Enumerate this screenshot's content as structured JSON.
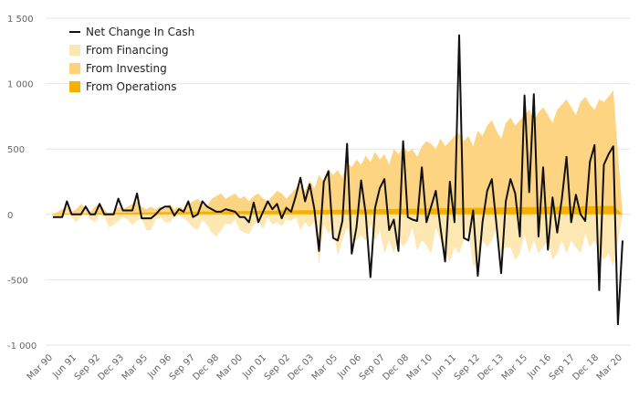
{
  "chart_data": {
    "type": "area",
    "title": "",
    "xlabel": "",
    "ylabel": "",
    "ylim": [
      -1000,
      1500
    ],
    "yticks": [
      1500,
      1000,
      500,
      0,
      -500,
      -1000
    ],
    "ytick_labels": [
      "1 500",
      "1 000",
      "500",
      "0",
      "-500",
      "-1 000"
    ],
    "xtick_labels": [
      "Mar 90",
      "Jun 91",
      "Sep 92",
      "Dec 93",
      "Mar 95",
      "Jun 96",
      "Sep 97",
      "Dec 98",
      "Mar 00",
      "Jun 01",
      "Sep 02",
      "Dec 03",
      "Mar 05",
      "Jun 06",
      "Sep 07",
      "Dec 08",
      "Mar 10",
      "Jun 11",
      "Sep 12",
      "Dec 13",
      "Mar 15",
      "Jun 16",
      "Sep 17",
      "Dec 18",
      "Mar 20"
    ],
    "grid": true,
    "legend_position": "top-left",
    "x_start": "Mar 90",
    "x_step": "quarter",
    "series": [
      {
        "name": "Net Change In Cash",
        "kind": "line",
        "color": "#111111",
        "values": [
          -20,
          -20,
          -20,
          100,
          0,
          0,
          0,
          60,
          0,
          0,
          80,
          0,
          0,
          0,
          120,
          30,
          30,
          30,
          160,
          -30,
          -30,
          -30,
          0,
          40,
          60,
          60,
          -10,
          40,
          20,
          100,
          -20,
          0,
          100,
          60,
          40,
          20,
          20,
          40,
          30,
          20,
          -20,
          -20,
          -60,
          90,
          -60,
          20,
          100,
          40,
          80,
          -30,
          50,
          20,
          140,
          280,
          100,
          230,
          40,
          -280,
          250,
          330,
          -180,
          -200,
          -50,
          540,
          -300,
          -100,
          260,
          0,
          -480,
          50,
          200,
          270,
          -120,
          -40,
          -280,
          560,
          -20,
          -40,
          -50,
          360,
          -60,
          60,
          180,
          -100,
          -360,
          250,
          -60,
          1370,
          -180,
          -200,
          30,
          -470,
          -60,
          180,
          270,
          -80,
          -450,
          100,
          270,
          160,
          -170,
          910,
          170,
          920,
          -170,
          360,
          -270,
          130,
          -140,
          120,
          440,
          -60,
          150,
          0,
          -50,
          400,
          530,
          -580,
          380,
          460,
          520,
          -840,
          -200
        ]
      },
      {
        "name": "From Financing",
        "kind": "area",
        "color": "#fde7b0",
        "values": [
          -20,
          -20,
          -10,
          40,
          -20,
          -60,
          -20,
          40,
          -40,
          -60,
          0,
          -20,
          -100,
          -80,
          -50,
          -20,
          -40,
          -80,
          -50,
          -30,
          -120,
          -120,
          -40,
          -20,
          -60,
          -60,
          -20,
          -10,
          -30,
          -60,
          -100,
          -120,
          -40,
          -80,
          -140,
          -170,
          -120,
          -70,
          -80,
          -40,
          -120,
          -140,
          -150,
          -80,
          -50,
          -110,
          -20,
          -80,
          -60,
          -90,
          -40,
          -50,
          -20,
          -120,
          -60,
          -100,
          -60,
          -380,
          -80,
          -150,
          -100,
          -320,
          -200,
          -100,
          -200,
          -200,
          -160,
          -200,
          -80,
          -200,
          -120,
          -300,
          -200,
          -300,
          -180,
          -250,
          -200,
          -100,
          -280,
          -200,
          -240,
          -300,
          -100,
          -200,
          -300,
          -360,
          -250,
          -300,
          -200,
          -120,
          -400,
          -350,
          -200,
          -250,
          -200,
          -100,
          -300,
          -250,
          -250,
          -350,
          -300,
          -150,
          -300,
          -200,
          -300,
          -250,
          -200,
          -350,
          -300,
          -200,
          -300,
          -200,
          -250,
          -300,
          -150,
          -250,
          -200,
          -300,
          -350,
          -300,
          -400
        ]
      },
      {
        "name": "From Investing",
        "kind": "area",
        "color": "#fdd27a",
        "values": [
          0,
          20,
          40,
          60,
          20,
          40,
          80,
          40,
          20,
          60,
          80,
          40,
          0,
          20,
          60,
          40,
          60,
          80,
          100,
          60,
          40,
          60,
          40,
          60,
          40,
          80,
          40,
          60,
          40,
          80,
          100,
          120,
          80,
          60,
          120,
          140,
          160,
          120,
          140,
          160,
          120,
          140,
          100,
          140,
          160,
          120,
          100,
          140,
          180,
          160,
          120,
          160,
          200,
          220,
          180,
          260,
          200,
          300,
          250,
          350,
          300,
          340,
          280,
          400,
          360,
          420,
          380,
          450,
          400,
          480,
          420,
          460,
          380,
          500,
          460,
          520,
          480,
          500,
          440,
          520,
          560,
          540,
          500,
          580,
          520,
          560,
          600,
          620,
          560,
          600,
          520,
          640,
          600,
          680,
          720,
          640,
          580,
          700,
          740,
          680,
          720,
          760,
          800,
          720,
          780,
          820,
          760,
          700,
          800,
          840,
          880,
          820,
          760,
          860,
          900,
          840,
          800,
          880,
          860,
          900,
          950
        ]
      },
      {
        "name": "From Operations",
        "kind": "area",
        "color": "#f5b000",
        "values": [
          5,
          5,
          6,
          6,
          7,
          7,
          8,
          8,
          9,
          9,
          10,
          10,
          11,
          11,
          12,
          12,
          13,
          13,
          14,
          14,
          15,
          15,
          16,
          16,
          17,
          17,
          18,
          18,
          19,
          19,
          20,
          20,
          21,
          21,
          22,
          22,
          23,
          23,
          24,
          24,
          25,
          25,
          26,
          26,
          27,
          27,
          28,
          28,
          29,
          29,
          30,
          30,
          31,
          31,
          32,
          32,
          33,
          33,
          34,
          34,
          35,
          35,
          36,
          36,
          37,
          37,
          38,
          38,
          39,
          39,
          40,
          40,
          41,
          41,
          42,
          42,
          43,
          43,
          44,
          44,
          45,
          45,
          46,
          46,
          47,
          47,
          48,
          48,
          49,
          49,
          50,
          50,
          51,
          51,
          52,
          52,
          53,
          53,
          54,
          54,
          55,
          55,
          56,
          56,
          57,
          57,
          58,
          58,
          59,
          59,
          60,
          60,
          61,
          61,
          62,
          62,
          63,
          63,
          64,
          64,
          65
        ]
      }
    ]
  }
}
